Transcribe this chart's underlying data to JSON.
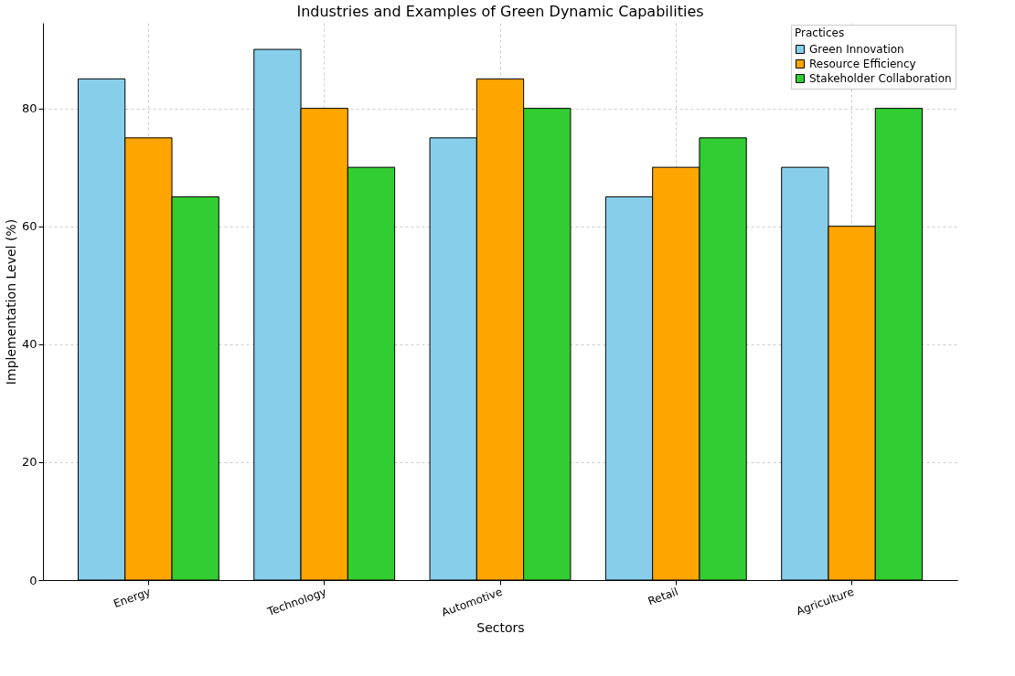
{
  "chart_data": {
    "type": "bar",
    "title": "Industries and Examples of Green Dynamic Capabilities",
    "xlabel": "Sectors",
    "ylabel": "Implementation Level (%)",
    "legend_title": "Practices",
    "categories": [
      "Energy",
      "Technology",
      "Automotive",
      "Retail",
      "Agriculture"
    ],
    "series": [
      {
        "name": "Green Innovation",
        "color": "#87ceeb",
        "values": [
          85,
          90,
          75,
          65,
          70
        ]
      },
      {
        "name": "Resource Efficiency",
        "color": "#ffa500",
        "values": [
          75,
          80,
          85,
          70,
          60
        ]
      },
      {
        "name": "Stakeholder Collaboration",
        "color": "#32cd32",
        "values": [
          65,
          70,
          80,
          75,
          80
        ]
      }
    ],
    "ylim": [
      0,
      94.5
    ],
    "yticks": [
      0,
      20,
      40,
      60,
      80
    ],
    "grid": true,
    "legend": "top right"
  }
}
